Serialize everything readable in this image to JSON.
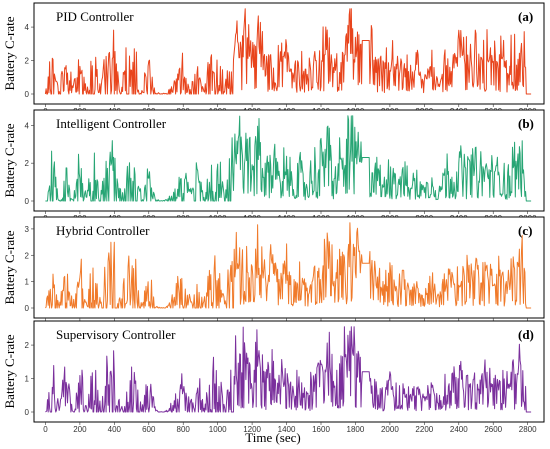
{
  "chart_data": {
    "type": "line",
    "xlabel": "Time (sec)",
    "ylabel": "Battery C-rate",
    "xlim": [
      -20,
      2860
    ],
    "xticks": [
      "0",
      "200",
      "400",
      "600",
      "800",
      "1000",
      "1200",
      "1400",
      "1600",
      "1800",
      "2000",
      "2200",
      "2400",
      "2600",
      "2800"
    ],
    "panels": [
      {
        "title": "PID Controller",
        "letter": "(a)",
        "color": "#e8441c",
        "ylim": [
          0,
          5.2
        ],
        "yticks": [
          "0",
          "2",
          "4"
        ],
        "spike_scale": 4.2,
        "plateau": 3.2,
        "final_peak": 3.7,
        "x": [
          0,
          40,
          80,
          120,
          160,
          200,
          240,
          280,
          320,
          360,
          400,
          440,
          480,
          520,
          560,
          600,
          640,
          680,
          720,
          760,
          800,
          840,
          880,
          920,
          960,
          1000,
          1040,
          1080,
          1120,
          1160,
          1200,
          1240,
          1280,
          1320,
          1360,
          1400,
          1440,
          1480,
          1520,
          1560,
          1600,
          1640,
          1680,
          1720,
          1760,
          1800,
          1840,
          1880,
          1920,
          1960,
          2000,
          2040,
          2080,
          2120,
          2160,
          2200,
          2240,
          2280,
          2320,
          2360,
          2400,
          2440,
          2480,
          2520,
          2560,
          2600,
          2640,
          2680,
          2720,
          2760,
          2800,
          2840
        ],
        "y": [
          0,
          2.5,
          0.2,
          2.8,
          0.3,
          2.6,
          0.2,
          3.0,
          0.4,
          2.7,
          2.9,
          0.3,
          2.8,
          2.5,
          0.2,
          2.4,
          0.1,
          0,
          0.3,
          1.2,
          2.0,
          0.4,
          2.2,
          0.3,
          2.4,
          2.6,
          0.5,
          2.9,
          3.8,
          4.5,
          2.5,
          4.2,
          1.8,
          3.3,
          2.2,
          2.8,
          1.4,
          2.4,
          1.2,
          2.6,
          3.1,
          4.4,
          1.8,
          3.3,
          4.6,
          4.0,
          3.2,
          3.2,
          2.7,
          1.5,
          3.0,
          1.8,
          2.4,
          1.3,
          2.0,
          1.2,
          2.1,
          0.6,
          2.3,
          2.8,
          3.1,
          2.6,
          3.3,
          2.5,
          2.9,
          2.4,
          2.8,
          2.1,
          3.0,
          3.7,
          2.2,
          0
        ]
      },
      {
        "title": "Intelligent Controller",
        "letter": "(b)",
        "color": "#27a574",
        "ylim": [
          0,
          4.6
        ],
        "yticks": [
          "0",
          "2",
          "4"
        ],
        "spike_scale": 3.9,
        "plateau": 2.3,
        "final_peak": 2.9,
        "x": [
          0,
          40,
          80,
          120,
          160,
          200,
          240,
          280,
          320,
          360,
          400,
          440,
          480,
          520,
          560,
          600,
          640,
          680,
          720,
          760,
          800,
          840,
          880,
          920,
          960,
          1000,
          1040,
          1080,
          1120,
          1160,
          1200,
          1240,
          1280,
          1320,
          1360,
          1400,
          1440,
          1480,
          1520,
          1560,
          1600,
          1640,
          1680,
          1720,
          1760,
          1800,
          1840,
          1880,
          1920,
          1960,
          2000,
          2040,
          2080,
          2120,
          2160,
          2200,
          2240,
          2280,
          2320,
          2360,
          2400,
          2440,
          2480,
          2520,
          2560,
          2600,
          2640,
          2680,
          2720,
          2760,
          2800,
          2840
        ],
        "y": [
          0,
          2.2,
          0.2,
          2.4,
          0.3,
          2.3,
          0.2,
          2.6,
          0.3,
          2.4,
          2.5,
          0.3,
          2.4,
          2.2,
          0.2,
          2.1,
          0.1,
          0,
          0.3,
          1.1,
          1.8,
          0.4,
          2.0,
          0.3,
          2.1,
          2.3,
          0.5,
          2.6,
          3.4,
          3.9,
          2.1,
          3.7,
          1.6,
          2.9,
          1.9,
          2.4,
          1.2,
          2.0,
          1.0,
          2.2,
          2.7,
          3.8,
          1.5,
          2.9,
          4.0,
          3.5,
          2.3,
          2.3,
          2.0,
          1.1,
          2.1,
          1.3,
          1.8,
          1.0,
          1.5,
          0.9,
          1.6,
          0.5,
          1.8,
          2.1,
          2.4,
          2.0,
          2.5,
          1.9,
          2.2,
          1.8,
          2.1,
          1.6,
          2.3,
          2.9,
          1.7,
          0
        ]
      },
      {
        "title": "Hybrid Controller",
        "letter": "(c)",
        "color": "#f07a2a",
        "ylim": [
          0,
          3.3
        ],
        "yticks": [
          "0",
          "1",
          "2",
          "3"
        ],
        "spike_scale": 2.9,
        "plateau": 1.7,
        "final_peak": 2.3,
        "x": [
          0,
          40,
          80,
          120,
          160,
          200,
          240,
          280,
          320,
          360,
          400,
          440,
          480,
          520,
          560,
          600,
          640,
          680,
          720,
          760,
          800,
          840,
          880,
          920,
          960,
          1000,
          1040,
          1080,
          1120,
          1160,
          1200,
          1240,
          1280,
          1320,
          1360,
          1400,
          1440,
          1480,
          1520,
          1560,
          1600,
          1640,
          1680,
          1720,
          1760,
          1800,
          1840,
          1880,
          1920,
          1960,
          2000,
          2040,
          2080,
          2120,
          2160,
          2200,
          2240,
          2280,
          2320,
          2360,
          2400,
          2440,
          2480,
          2520,
          2560,
          2600,
          2640,
          2680,
          2720,
          2760,
          2800,
          2840
        ],
        "y": [
          0,
          1.6,
          0.1,
          1.8,
          0.2,
          1.7,
          0.1,
          2.0,
          0.2,
          1.8,
          1.9,
          0.2,
          1.8,
          1.6,
          0.1,
          1.5,
          0.1,
          0,
          0.2,
          0.8,
          1.3,
          0.3,
          1.4,
          0.2,
          1.6,
          1.7,
          0.3,
          1.9,
          2.5,
          2.9,
          1.6,
          2.7,
          1.2,
          2.1,
          1.4,
          1.8,
          0.9,
          1.5,
          0.8,
          1.7,
          2.0,
          2.8,
          1.2,
          2.1,
          3.0,
          2.6,
          1.7,
          1.7,
          1.5,
          0.8,
          1.6,
          1.0,
          1.3,
          0.8,
          1.1,
          0.7,
          1.2,
          0.4,
          1.3,
          1.5,
          1.7,
          1.5,
          1.8,
          1.4,
          1.6,
          1.3,
          1.5,
          1.2,
          1.7,
          2.3,
          1.3,
          0
        ]
      },
      {
        "title": "Supervisory Controller",
        "letter": "(d)",
        "color": "#7a2f9c",
        "ylim": [
          0,
          2.6
        ],
        "yticks": [
          "0",
          "1",
          "2"
        ],
        "spike_scale": 2.2,
        "plateau": 1.2,
        "final_peak": 1.6,
        "x": [
          0,
          40,
          80,
          120,
          160,
          200,
          240,
          280,
          320,
          360,
          400,
          440,
          480,
          520,
          560,
          600,
          640,
          680,
          720,
          760,
          800,
          840,
          880,
          920,
          960,
          1000,
          1040,
          1080,
          1120,
          1160,
          1200,
          1240,
          1280,
          1320,
          1360,
          1400,
          1440,
          1480,
          1520,
          1560,
          1600,
          1640,
          1680,
          1720,
          1760,
          1800,
          1840,
          1880,
          1920,
          1960,
          2000,
          2040,
          2080,
          2120,
          2160,
          2200,
          2240,
          2280,
          2320,
          2360,
          2400,
          2440,
          2480,
          2520,
          2560,
          2600,
          2640,
          2680,
          2720,
          2760,
          2800,
          2840
        ],
        "y": [
          0,
          1.3,
          0.1,
          1.4,
          0.1,
          1.3,
          0.1,
          1.5,
          0.2,
          1.4,
          1.5,
          0.1,
          1.4,
          1.3,
          0.1,
          1.2,
          0.05,
          0,
          0.1,
          0.6,
          1.0,
          0.2,
          1.1,
          0.2,
          1.2,
          1.3,
          0.2,
          1.5,
          1.9,
          2.2,
          1.2,
          2.1,
          0.9,
          1.7,
          1.1,
          1.4,
          0.7,
          1.2,
          0.6,
          1.3,
          1.6,
          2.2,
          0.9,
          1.6,
          2.4,
          2.0,
          1.2,
          1.2,
          1.1,
          0.6,
          1.2,
          0.7,
          1.0,
          0.6,
          0.8,
          0.5,
          0.9,
          0.3,
          1.0,
          1.2,
          1.4,
          1.1,
          1.4,
          1.1,
          1.3,
          1.0,
          1.2,
          0.9,
          1.3,
          1.6,
          1.0,
          0
        ]
      }
    ]
  }
}
